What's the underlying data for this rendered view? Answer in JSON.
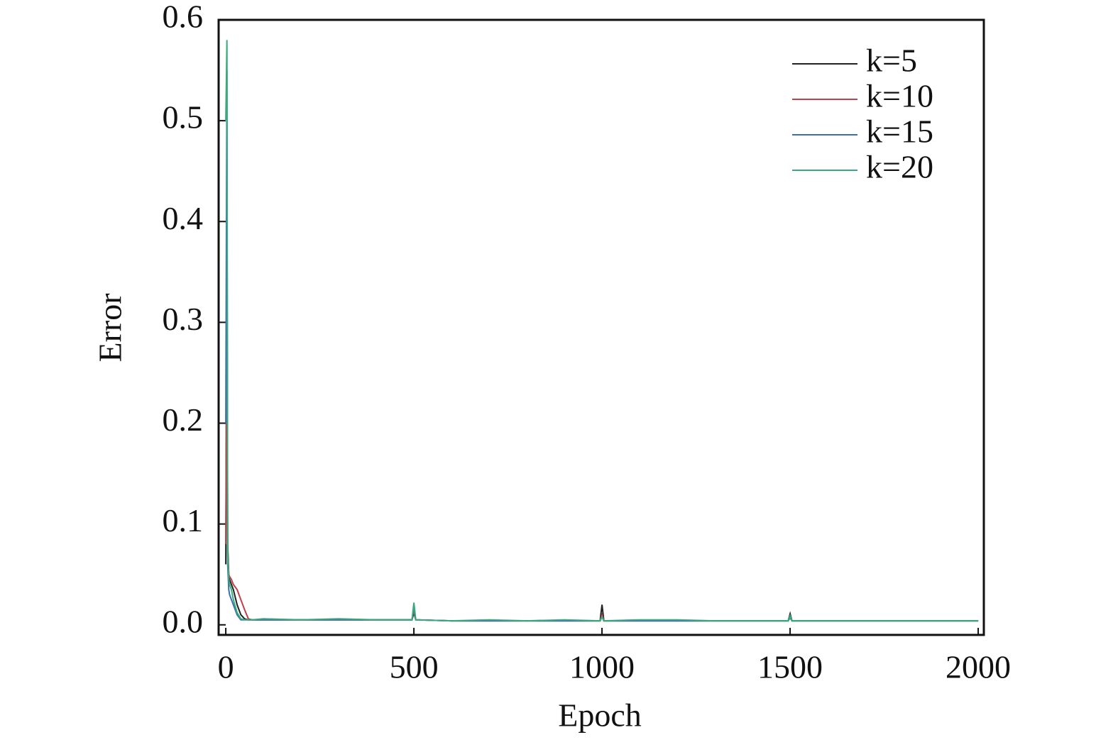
{
  "chart_data": {
    "type": "line",
    "xlabel": "Epoch",
    "ylabel": "Error",
    "x": [
      0,
      3,
      5,
      8,
      10,
      15,
      20,
      30,
      40,
      50,
      60,
      70,
      100,
      200,
      300,
      400,
      495,
      500,
      505,
      600,
      700,
      800,
      900,
      995,
      1000,
      1005,
      1100,
      1200,
      1300,
      1400,
      1495,
      1500,
      1505,
      1600,
      1700,
      1800,
      1900,
      2000
    ],
    "series": [
      {
        "name": "k=5",
        "color": "#222222",
        "values": [
          0.06,
          0.41,
          0.08,
          0.05,
          0.045,
          0.04,
          0.035,
          0.02,
          0.01,
          0.006,
          0.005,
          0.005,
          0.005,
          0.005,
          0.005,
          0.005,
          0.005,
          0.012,
          0.005,
          0.004,
          0.004,
          0.004,
          0.004,
          0.004,
          0.02,
          0.004,
          0.004,
          0.004,
          0.004,
          0.004,
          0.004,
          0.011,
          0.004,
          0.004,
          0.004,
          0.004,
          0.004,
          0.004
        ]
      },
      {
        "name": "k=10",
        "color": "#c0404a",
        "values": [
          0.08,
          0.27,
          0.07,
          0.05,
          0.048,
          0.045,
          0.04,
          0.035,
          0.025,
          0.015,
          0.006,
          0.005,
          0.005,
          0.005,
          0.005,
          0.005,
          0.005,
          0.015,
          0.005,
          0.004,
          0.004,
          0.004,
          0.004,
          0.004,
          0.01,
          0.004,
          0.004,
          0.004,
          0.004,
          0.004,
          0.004,
          0.008,
          0.004,
          0.004,
          0.004,
          0.004,
          0.004,
          0.004
        ]
      },
      {
        "name": "k=15",
        "color": "#3a6fb5",
        "values": [
          0.2,
          0.55,
          0.06,
          0.035,
          0.03,
          0.025,
          0.02,
          0.01,
          0.005,
          0.005,
          0.005,
          0.005,
          0.005,
          0.005,
          0.005,
          0.005,
          0.005,
          0.018,
          0.005,
          0.004,
          0.004,
          0.004,
          0.004,
          0.004,
          0.008,
          0.004,
          0.004,
          0.004,
          0.004,
          0.004,
          0.004,
          0.007,
          0.004,
          0.004,
          0.004,
          0.004,
          0.004,
          0.004
        ]
      },
      {
        "name": "k=20",
        "color": "#3aaa7a",
        "values": [
          0.5,
          0.58,
          0.07,
          0.045,
          0.04,
          0.035,
          0.025,
          0.012,
          0.006,
          0.005,
          0.005,
          0.005,
          0.006,
          0.005,
          0.006,
          0.005,
          0.005,
          0.022,
          0.005,
          0.004,
          0.005,
          0.004,
          0.005,
          0.004,
          0.008,
          0.004,
          0.005,
          0.005,
          0.004,
          0.004,
          0.004,
          0.009,
          0.004,
          0.004,
          0.004,
          0.004,
          0.004,
          0.004
        ]
      }
    ],
    "xlim": [
      -19,
      2015
    ],
    "ylim": [
      -0.01,
      0.6
    ],
    "xticks": [
      0,
      500,
      1000,
      1500,
      2000
    ],
    "yticks": [
      {
        "value": 0,
        "label": "0.0"
      },
      0.1,
      0.2,
      0.3,
      0.4,
      0.5,
      0.6
    ],
    "legend": "upper right"
  }
}
